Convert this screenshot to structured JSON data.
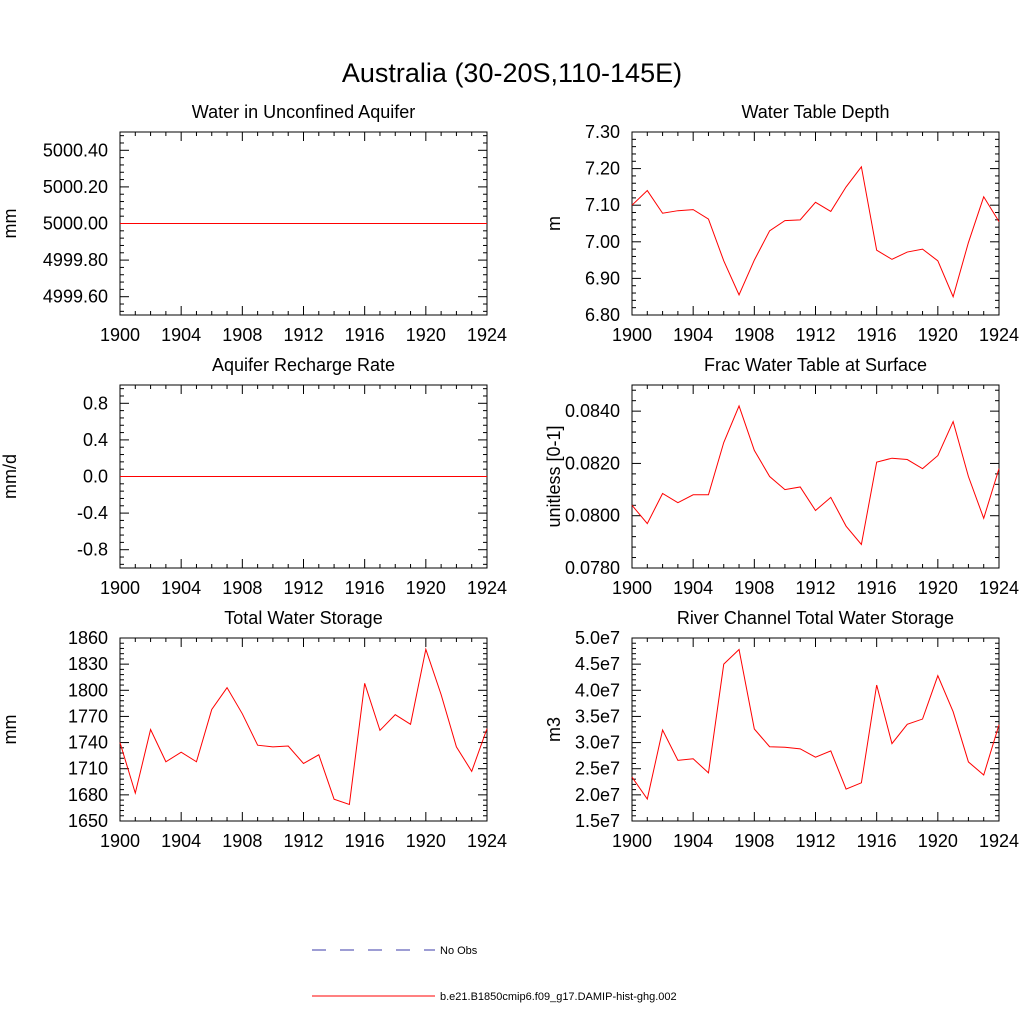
{
  "title": "Australia (30-20S,110-145E)",
  "legend": {
    "entries": [
      {
        "label": "No Obs",
        "style": "dashed",
        "color": "#3b3ba8"
      },
      {
        "label": "b.e21.B1850cmip6.f09_g17.DAMIP-hist-ghg.002",
        "style": "solid",
        "color": "#ff0000"
      }
    ]
  },
  "chart_data": [
    {
      "type": "line",
      "title": "Water in Unconfined Aquifer",
      "xlabel": "",
      "ylabel": "mm",
      "xlim": [
        1900,
        1924
      ],
      "ylim": [
        4999.5,
        5000.5
      ],
      "xticks": [
        1900,
        1904,
        1908,
        1912,
        1916,
        1920,
        1924
      ],
      "xtick_labels": [
        "1900",
        "1904",
        "1908",
        "1912",
        "1916",
        "1920",
        "1924"
      ],
      "yticks": [
        4999.6,
        4999.8,
        5000.0,
        5000.2,
        5000.4
      ],
      "ytick_labels": [
        "4999.60",
        "4999.80",
        "5000.00",
        "5000.20",
        "5000.40"
      ],
      "x": [
        1900,
        1901,
        1902,
        1903,
        1904,
        1905,
        1906,
        1907,
        1908,
        1909,
        1910,
        1911,
        1912,
        1913,
        1914,
        1915,
        1916,
        1917,
        1918,
        1919,
        1920,
        1921,
        1922,
        1923,
        1924
      ],
      "series": [
        {
          "color": "#ff0000",
          "values": [
            5000,
            5000,
            5000,
            5000,
            5000,
            5000,
            5000,
            5000,
            5000,
            5000,
            5000,
            5000,
            5000,
            5000,
            5000,
            5000,
            5000,
            5000,
            5000,
            5000,
            5000,
            5000,
            5000,
            5000,
            5000
          ]
        }
      ]
    },
    {
      "type": "line",
      "title": "Water Table Depth",
      "xlabel": "",
      "ylabel": "m",
      "xlim": [
        1900,
        1924
      ],
      "ylim": [
        6.8,
        7.3
      ],
      "xticks": [
        1900,
        1904,
        1908,
        1912,
        1916,
        1920,
        1924
      ],
      "xtick_labels": [
        "1900",
        "1904",
        "1908",
        "1912",
        "1916",
        "1920",
        "1924"
      ],
      "yticks": [
        6.8,
        6.9,
        7.0,
        7.1,
        7.2,
        7.3
      ],
      "ytick_labels": [
        "6.80",
        "6.90",
        "7.00",
        "7.10",
        "7.20",
        "7.30"
      ],
      "x": [
        1900,
        1901,
        1902,
        1903,
        1904,
        1905,
        1906,
        1907,
        1908,
        1909,
        1910,
        1911,
        1912,
        1913,
        1914,
        1915,
        1916,
        1917,
        1918,
        1919,
        1920,
        1921,
        1922,
        1923,
        1924
      ],
      "series": [
        {
          "color": "#ff0000",
          "values": [
            7.1,
            7.14,
            7.078,
            7.085,
            7.088,
            7.062,
            6.948,
            6.855,
            6.95,
            7.03,
            7.058,
            7.06,
            7.108,
            7.083,
            7.15,
            7.205,
            6.977,
            6.952,
            6.972,
            6.98,
            6.948,
            6.85,
            6.998,
            7.123,
            7.055
          ]
        }
      ]
    },
    {
      "type": "line",
      "title": "Aquifer Recharge Rate",
      "xlabel": "",
      "ylabel": "mm/d",
      "xlim": [
        1900,
        1924
      ],
      "ylim": [
        -1.0,
        1.0
      ],
      "xticks": [
        1900,
        1904,
        1908,
        1912,
        1916,
        1920,
        1924
      ],
      "xtick_labels": [
        "1900",
        "1904",
        "1908",
        "1912",
        "1916",
        "1920",
        "1924"
      ],
      "yticks": [
        -0.8,
        -0.4,
        0.0,
        0.4,
        0.8
      ],
      "ytick_labels": [
        "-0.8",
        "-0.4",
        "0.0",
        "0.4",
        "0.8"
      ],
      "x": [
        1900,
        1901,
        1902,
        1903,
        1904,
        1905,
        1906,
        1907,
        1908,
        1909,
        1910,
        1911,
        1912,
        1913,
        1914,
        1915,
        1916,
        1917,
        1918,
        1919,
        1920,
        1921,
        1922,
        1923,
        1924
      ],
      "series": [
        {
          "color": "#ff0000",
          "values": [
            0,
            0,
            0,
            0,
            0,
            0,
            0,
            0,
            0,
            0,
            0,
            0,
            0,
            0,
            0,
            0,
            0,
            0,
            0,
            0,
            0,
            0,
            0,
            0,
            0
          ]
        }
      ]
    },
    {
      "type": "line",
      "title": "Frac Water Table at Surface",
      "xlabel": "",
      "ylabel": "unitless [0-1]",
      "xlim": [
        1900,
        1924
      ],
      "ylim": [
        0.078,
        0.085
      ],
      "xticks": [
        1900,
        1904,
        1908,
        1912,
        1916,
        1920,
        1924
      ],
      "xtick_labels": [
        "1900",
        "1904",
        "1908",
        "1912",
        "1916",
        "1920",
        "1924"
      ],
      "yticks": [
        0.078,
        0.08,
        0.082,
        0.084
      ],
      "ytick_labels": [
        "0.0780",
        "0.0800",
        "0.0820",
        "0.0840"
      ],
      "x": [
        1900,
        1901,
        1902,
        1903,
        1904,
        1905,
        1906,
        1907,
        1908,
        1909,
        1910,
        1911,
        1912,
        1913,
        1914,
        1915,
        1916,
        1917,
        1918,
        1919,
        1920,
        1921,
        1922,
        1923,
        1924
      ],
      "series": [
        {
          "color": "#ff0000",
          "values": [
            0.0804,
            0.0797,
            0.08085,
            0.0805,
            0.0808,
            0.0808,
            0.0828,
            0.0842,
            0.0825,
            0.0815,
            0.081,
            0.0811,
            0.0802,
            0.0807,
            0.0796,
            0.0789,
            0.08205,
            0.0822,
            0.08215,
            0.0818,
            0.0823,
            0.0836,
            0.0815,
            0.0799,
            0.0818
          ]
        }
      ]
    },
    {
      "type": "line",
      "title": "Total Water Storage",
      "xlabel": "",
      "ylabel": "mm",
      "xlim": [
        1900,
        1924
      ],
      "ylim": [
        1650,
        1860
      ],
      "xticks": [
        1900,
        1904,
        1908,
        1912,
        1916,
        1920,
        1924
      ],
      "xtick_labels": [
        "1900",
        "1904",
        "1908",
        "1912",
        "1916",
        "1920",
        "1924"
      ],
      "yticks": [
        1650,
        1680,
        1710,
        1740,
        1770,
        1800,
        1830,
        1860
      ],
      "ytick_labels": [
        "1650",
        "1680",
        "1710",
        "1740",
        "1770",
        "1800",
        "1830",
        "1860"
      ],
      "x": [
        1900,
        1901,
        1902,
        1903,
        1904,
        1905,
        1906,
        1907,
        1908,
        1909,
        1910,
        1911,
        1912,
        1913,
        1914,
        1915,
        1916,
        1917,
        1918,
        1919,
        1920,
        1921,
        1922,
        1923,
        1924
      ],
      "series": [
        {
          "color": "#ff0000",
          "values": [
            1740,
            1682,
            1755,
            1718,
            1729,
            1718,
            1778,
            1803,
            1773,
            1737,
            1735,
            1736,
            1716,
            1726,
            1675,
            1669,
            1808,
            1754,
            1772,
            1761,
            1847,
            1795,
            1735,
            1707,
            1756
          ]
        }
      ]
    },
    {
      "type": "line",
      "title": "River Channel Total Water Storage",
      "xlabel": "",
      "ylabel": "m3",
      "xlim": [
        1900,
        1924
      ],
      "ylim": [
        15000000,
        50000000
      ],
      "xticks": [
        1900,
        1904,
        1908,
        1912,
        1916,
        1920,
        1924
      ],
      "xtick_labels": [
        "1900",
        "1904",
        "1908",
        "1912",
        "1916",
        "1920",
        "1924"
      ],
      "yticks": [
        15000000,
        20000000,
        25000000,
        30000000,
        35000000,
        40000000,
        45000000,
        50000000
      ],
      "ytick_labels": [
        "1.5e7",
        "2.0e7",
        "2.5e7",
        "3.0e7",
        "3.5e7",
        "4.0e7",
        "4.5e7",
        "5.0e7"
      ],
      "x": [
        1900,
        1901,
        1902,
        1903,
        1904,
        1905,
        1906,
        1907,
        1908,
        1909,
        1910,
        1911,
        1912,
        1913,
        1914,
        1915,
        1916,
        1917,
        1918,
        1919,
        1920,
        1921,
        1922,
        1923,
        1924
      ],
      "series": [
        {
          "color": "#ff0000",
          "values": [
            23400000,
            19200000,
            32400000,
            26600000,
            26900000,
            24200000,
            45000000,
            47800000,
            32600000,
            29200000,
            29100000,
            28800000,
            27200000,
            28400000,
            21100000,
            22300000,
            41000000,
            29800000,
            33500000,
            34500000,
            42800000,
            35900000,
            26300000,
            23800000,
            33400000
          ]
        }
      ]
    }
  ]
}
